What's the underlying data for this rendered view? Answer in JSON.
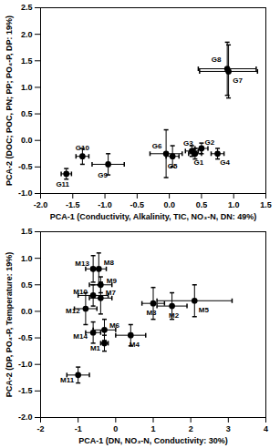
{
  "chart_data": [
    {
      "type": "scatter",
      "x_label": "PCA-1 (Conductivity, Alkalinity, TIC, NO₃-N, DN: 49%)",
      "y_label": "PCA-2 (DOC; POC, PN; PP; PO₄-P, DP: 19%)",
      "xlim": [
        -2,
        1.5
      ],
      "xticks": [
        {
          "value": -2,
          "label": "-2.0"
        },
        {
          "value": -1.5,
          "label": "-1.5"
        },
        {
          "value": -1,
          "label": "-1.0"
        },
        {
          "value": -0.5,
          "label": "-0.5"
        },
        {
          "value": 0,
          "label": "0.0"
        },
        {
          "value": 0.5,
          "label": "0.5"
        },
        {
          "value": 1,
          "label": "1.0"
        },
        {
          "value": 1.5,
          "label": "1.5"
        }
      ],
      "ylim": [
        -1,
        2.5
      ],
      "yticks": [
        {
          "value": -1,
          "label": "-1.0"
        },
        {
          "value": -0.5,
          "label": "-0.5"
        },
        {
          "value": 0,
          "label": "0.0"
        },
        {
          "value": 0.5,
          "label": "0.5"
        },
        {
          "value": 1,
          "label": "1.0"
        },
        {
          "value": 1.5,
          "label": "1.5"
        },
        {
          "value": 2,
          "label": "2.0"
        },
        {
          "value": 2.5,
          "label": "2.5"
        }
      ],
      "color": "#000000",
      "marker": "circle",
      "labels": [
        "G1",
        "G2",
        "G3",
        "G4",
        "G5",
        "G6",
        "G7",
        "G8",
        "G9",
        "G10",
        "G11"
      ],
      "x": [
        0.4,
        0.5,
        0.35,
        0.75,
        0.05,
        -0.05,
        0.92,
        0.9,
        -0.95,
        -1.35,
        -1.6
      ],
      "values": [
        -0.25,
        -0.15,
        -0.2,
        -0.25,
        -0.3,
        -0.25,
        1.3,
        1.35,
        -0.45,
        -0.3,
        -0.63
      ],
      "x_error": [
        0.1,
        0.1,
        0.1,
        0.1,
        0.1,
        0.25,
        0.45,
        0.45,
        0.25,
        0.1,
        0.08
      ],
      "y_error": [
        0.1,
        0.1,
        0.1,
        0.1,
        0.2,
        0.45,
        0.5,
        0.5,
        0.2,
        0.15,
        0.1
      ]
    },
    {
      "type": "scatter",
      "x_label": "PCA-1 (DN, NO₃-N, Conductivity: 30%)",
      "y_label": "PCA-2 (DP, PO₄-P, Temperature: 19%)",
      "xlim": [
        -2,
        4
      ],
      "xticks": [
        -2,
        -1,
        0,
        1,
        2,
        3,
        4
      ],
      "ylim": [
        -2,
        1.5
      ],
      "yticks": [
        {
          "value": -2,
          "label": "-2.0"
        },
        {
          "value": -1.5,
          "label": "-1.5"
        },
        {
          "value": -1,
          "label": "-1.0"
        },
        {
          "value": -0.5,
          "label": "-0.5"
        },
        {
          "value": 0,
          "label": "0.0"
        },
        {
          "value": 0.5,
          "label": "0.5"
        },
        {
          "value": 1,
          "label": "1.0"
        },
        {
          "value": 1.5,
          "label": "1.5"
        }
      ],
      "color": "#000000",
      "marker": "circle",
      "labels": [
        "M1",
        "M2",
        "M3",
        "M4",
        "M5",
        "M6",
        "M7",
        "M8",
        "M9",
        "M10",
        "M11",
        "M12",
        "M13",
        "M14"
      ],
      "x": [
        -0.3,
        1.5,
        1.0,
        0.4,
        2.1,
        -0.3,
        -0.4,
        -0.45,
        -0.4,
        -0.6,
        -1.0,
        -0.8,
        -0.6,
        -0.6
      ],
      "values": [
        -0.6,
        0.1,
        0.15,
        -0.45,
        0.2,
        -0.35,
        0.25,
        0.8,
        0.5,
        0.3,
        -1.2,
        0.05,
        0.8,
        -0.4
      ],
      "x_error": [
        0.1,
        0.4,
        0.3,
        0.4,
        1.0,
        0.3,
        0.3,
        0.2,
        0.3,
        0.4,
        0.3,
        0.3,
        0.2,
        0.2
      ],
      "y_error": [
        0.15,
        0.25,
        0.3,
        0.2,
        0.3,
        0.2,
        0.3,
        0.3,
        0.15,
        0.2,
        0.15,
        0.3,
        0.25,
        0.2
      ]
    }
  ]
}
